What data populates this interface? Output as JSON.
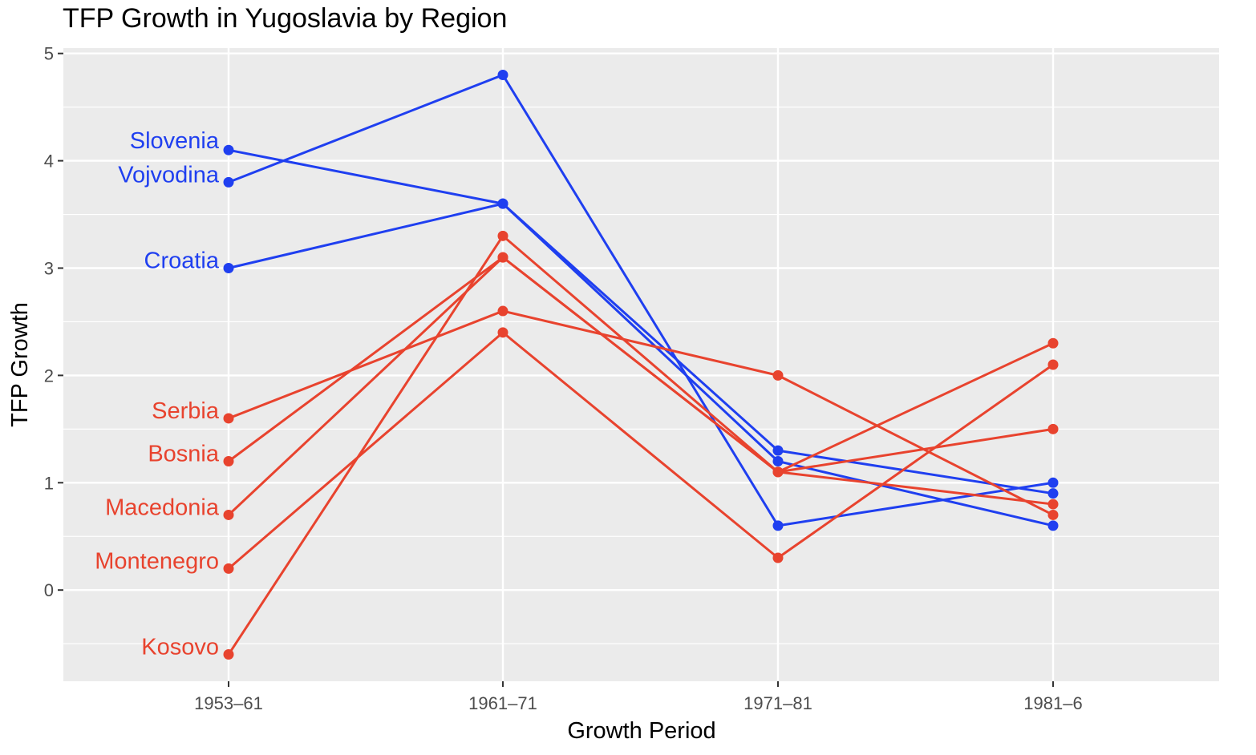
{
  "chart_data": {
    "type": "line",
    "title": "TFP Growth in Yugoslavia by Region",
    "xlabel": "Growth Period",
    "ylabel": "TFP Growth",
    "categories": [
      "1953–61",
      "1961–71",
      "1971–81",
      "1981–6"
    ],
    "ylim": [
      -0.85,
      5.05
    ],
    "yticks": [
      0,
      1,
      2,
      3,
      4,
      5
    ],
    "grid": true,
    "legend": "none (series labelled at left end of lines)",
    "colors": {
      "blue": "#1f3ff0",
      "red": "#e8432e",
      "panel": "#ebebeb",
      "grid": "#ffffff"
    },
    "series": [
      {
        "name": "Slovenia",
        "color": "#1f3ff0",
        "values": [
          4.1,
          3.6,
          1.3,
          0.9
        ]
      },
      {
        "name": "Vojvodina",
        "color": "#1f3ff0",
        "values": [
          3.8,
          4.8,
          0.6,
          1.0
        ]
      },
      {
        "name": "Croatia",
        "color": "#1f3ff0",
        "values": [
          3.0,
          3.6,
          1.2,
          0.6
        ]
      },
      {
        "name": "Serbia",
        "color": "#e8432e",
        "values": [
          1.6,
          2.6,
          2.0,
          0.7
        ]
      },
      {
        "name": "Bosnia",
        "color": "#e8432e",
        "values": [
          1.2,
          3.1,
          1.1,
          1.5
        ]
      },
      {
        "name": "Macedonia",
        "color": "#e8432e",
        "values": [
          0.7,
          3.1,
          1.1,
          0.8
        ]
      },
      {
        "name": "Montenegro",
        "color": "#e8432e",
        "values": [
          0.2,
          2.4,
          0.3,
          2.1
        ]
      },
      {
        "name": "Kosovo",
        "color": "#e8432e",
        "values": [
          -0.6,
          3.3,
          1.1,
          2.3
        ]
      }
    ]
  }
}
